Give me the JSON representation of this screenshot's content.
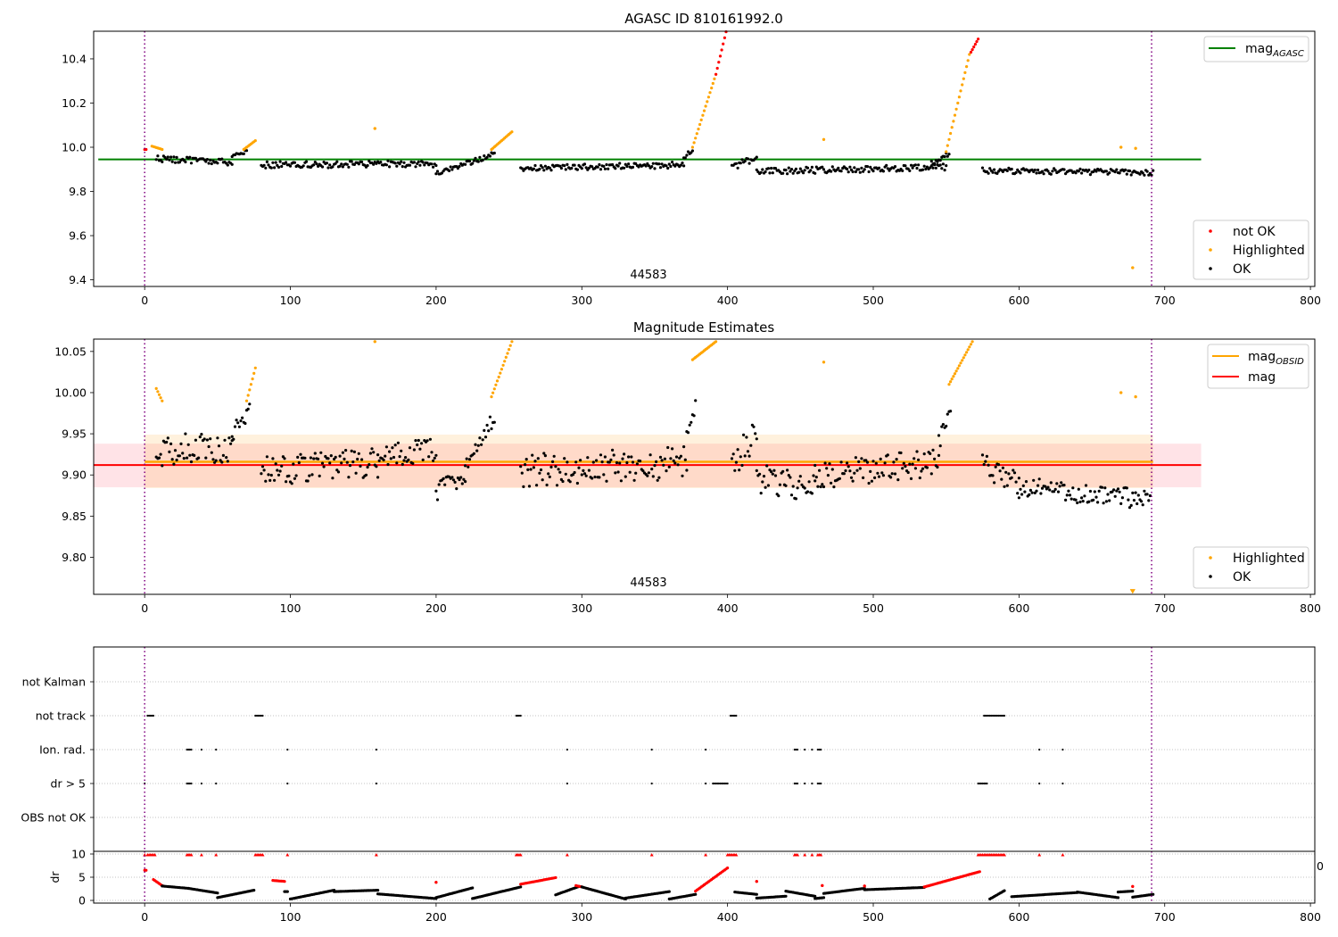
{
  "chart_data": [
    {
      "type": "scatter",
      "title": "AGASC ID 810161992.0",
      "xlim": [
        -35,
        803
      ],
      "ylim": [
        9.37,
        10.525
      ],
      "xticks": [
        "0",
        "100",
        "200",
        "300",
        "400",
        "500",
        "600",
        "700",
        "800"
      ],
      "yticks": [
        "9.4",
        "9.6",
        "9.8",
        "10.0",
        "10.2",
        "10.4"
      ],
      "annotation": "44583",
      "vlines": [
        0,
        691
      ],
      "reference_line": {
        "name": "mag_AGASC",
        "value": 9.945,
        "x_range": [
          0,
          725
        ],
        "color": "#008000"
      },
      "legends": {
        "lines": [
          {
            "label": "mag",
            "sub": "AGASC",
            "color": "#008000"
          }
        ],
        "points": [
          {
            "label": "not OK",
            "color": "#ff0000"
          },
          {
            "label": "Highlighted",
            "color": "#ffa500"
          },
          {
            "label": "OK",
            "color": "#000000"
          }
        ]
      },
      "segments": [
        {
          "x0": 0,
          "x1": 1,
          "y0": 9.99,
          "y1": 9.99,
          "status": "not_ok"
        },
        {
          "x0": 5,
          "x1": 12,
          "y0": 10.005,
          "y1": 9.99,
          "status": "highlighted"
        },
        {
          "x0": 8,
          "x1": 60,
          "y0": 9.95,
          "y1": 9.93,
          "status": "ok",
          "noise": 0.015
        },
        {
          "x0": 60,
          "x1": 70,
          "y0": 9.96,
          "y1": 9.98,
          "status": "ok",
          "noise": 0.008
        },
        {
          "x0": 68,
          "x1": 76,
          "y0": 9.99,
          "y1": 10.03,
          "status": "highlighted"
        },
        {
          "x0": 80,
          "x1": 200,
          "y0": 9.92,
          "y1": 9.925,
          "status": "ok",
          "noise": 0.015
        },
        {
          "x0": 158,
          "x1": 158,
          "y0": 10.085,
          "y1": 10.085,
          "status": "highlighted"
        },
        {
          "x0": 200,
          "x1": 240,
          "y0": 9.88,
          "y1": 9.97,
          "status": "ok",
          "noise": 0.012
        },
        {
          "x0": 238,
          "x1": 252,
          "y0": 9.99,
          "y1": 10.07,
          "status": "highlighted"
        },
        {
          "x0": 258,
          "x1": 370,
          "y0": 9.905,
          "y1": 9.92,
          "status": "ok",
          "noise": 0.014
        },
        {
          "x0": 370,
          "x1": 376,
          "y0": 9.95,
          "y1": 9.99,
          "status": "ok",
          "noise": 0.01
        },
        {
          "x0": 376,
          "x1": 392,
          "y0": 10.0,
          "y1": 10.33,
          "status": "highlighted"
        },
        {
          "x0": 392,
          "x1": 400,
          "y0": 10.33,
          "y1": 10.55,
          "status": "not_ok"
        },
        {
          "x0": 403,
          "x1": 420,
          "y0": 9.91,
          "y1": 9.95,
          "status": "ok",
          "noise": 0.018
        },
        {
          "x0": 420,
          "x1": 550,
          "y0": 9.89,
          "y1": 9.91,
          "status": "ok",
          "noise": 0.015
        },
        {
          "x0": 466,
          "x1": 466,
          "y0": 10.035,
          "y1": 10.035,
          "status": "highlighted"
        },
        {
          "x0": 540,
          "x1": 552,
          "y0": 9.93,
          "y1": 9.97,
          "status": "ok",
          "noise": 0.01
        },
        {
          "x0": 550,
          "x1": 566,
          "y0": 9.98,
          "y1": 10.42,
          "status": "highlighted"
        },
        {
          "x0": 567,
          "x1": 572,
          "y0": 10.43,
          "y1": 10.49,
          "status": "not_ok"
        },
        {
          "x0": 575,
          "x1": 692,
          "y0": 9.895,
          "y1": 9.885,
          "status": "ok",
          "noise": 0.013
        },
        {
          "x0": 670,
          "x1": 670,
          "y0": 10.0,
          "y1": 10.0,
          "status": "highlighted"
        },
        {
          "x0": 678,
          "x1": 678,
          "y0": 9.455,
          "y1": 9.455,
          "status": "highlighted"
        },
        {
          "x0": 680,
          "x1": 680,
          "y0": 9.995,
          "y1": 9.995,
          "status": "highlighted"
        }
      ]
    },
    {
      "type": "scatter",
      "title": "Magnitude Estimates",
      "xlim": [
        -35,
        803
      ],
      "ylim": [
        9.755,
        10.065
      ],
      "clip_value": 10.062,
      "xticks": [
        "0",
        "100",
        "200",
        "300",
        "400",
        "500",
        "600",
        "700",
        "800"
      ],
      "yticks": [
        "9.80",
        "9.85",
        "9.90",
        "9.95",
        "10.00",
        "10.05"
      ],
      "annotation": "44583",
      "vlines": [
        0,
        691
      ],
      "bands": [
        {
          "y0": 9.885,
          "y1": 9.938,
          "x_range": [
            -35,
            725
          ],
          "color": "#ff8090",
          "opacity": 0.22
        },
        {
          "y0": 9.884,
          "y1": 9.949,
          "x_range": [
            0,
            692
          ],
          "color": "#ffb040",
          "opacity": 0.18
        }
      ],
      "reference_lines": [
        {
          "name": "mag_OBSID",
          "value": 9.916,
          "x_range": [
            0,
            692
          ],
          "color": "#ffa500",
          "width": 2.5
        },
        {
          "name": "mag",
          "value": 9.912,
          "x_range": [
            -35,
            725
          ],
          "color": "#ff0000",
          "width": 2
        }
      ],
      "legends": {
        "lines": [
          {
            "label": "mag",
            "sub": "OBSID",
            "color": "#ffa500"
          },
          {
            "label": "mag",
            "sub": "",
            "color": "#ff0000"
          }
        ],
        "points": [
          {
            "label": "Highlighted",
            "color": "#ffa500"
          },
          {
            "label": "OK",
            "color": "#000000"
          }
        ]
      },
      "segments": [
        {
          "x0": 8,
          "x1": 12,
          "y0": 10.005,
          "y1": 9.99,
          "status": "highlighted"
        },
        {
          "x0": 8,
          "x1": 60,
          "y0": 9.93,
          "y1": 9.935,
          "status": "ok",
          "noise": 0.02
        },
        {
          "x0": 60,
          "x1": 72,
          "y0": 9.95,
          "y1": 9.98,
          "status": "ok",
          "noise": 0.01
        },
        {
          "x0": 70,
          "x1": 76,
          "y0": 9.99,
          "y1": 10.03,
          "status": "highlighted"
        },
        {
          "x0": 80,
          "x1": 160,
          "y0": 9.905,
          "y1": 9.915,
          "status": "ok",
          "noise": 0.018
        },
        {
          "x0": 158,
          "x1": 158,
          "y0": 10.062,
          "y1": 10.062,
          "status": "highlighted"
        },
        {
          "x0": 160,
          "x1": 200,
          "y0": 9.925,
          "y1": 9.93,
          "status": "ok",
          "noise": 0.015
        },
        {
          "x0": 200,
          "x1": 220,
          "y0": 9.88,
          "y1": 9.9,
          "status": "ok",
          "noise": 0.012
        },
        {
          "x0": 220,
          "x1": 240,
          "y0": 9.91,
          "y1": 9.97,
          "status": "ok",
          "noise": 0.01
        },
        {
          "x0": 238,
          "x1": 252,
          "y0": 9.995,
          "y1": 10.062,
          "status": "highlighted"
        },
        {
          "x0": 258,
          "x1": 372,
          "y0": 9.905,
          "y1": 9.915,
          "status": "ok",
          "noise": 0.02
        },
        {
          "x0": 372,
          "x1": 378,
          "y0": 9.95,
          "y1": 9.985,
          "status": "ok",
          "noise": 0.008
        },
        {
          "x0": 376,
          "x1": 392,
          "y0": 10.04,
          "y1": 10.062,
          "status": "highlighted"
        },
        {
          "x0": 403,
          "x1": 420,
          "y0": 9.91,
          "y1": 9.95,
          "status": "ok",
          "noise": 0.02
        },
        {
          "x0": 420,
          "x1": 460,
          "y0": 9.895,
          "y1": 9.885,
          "status": "ok",
          "noise": 0.018
        },
        {
          "x0": 460,
          "x1": 545,
          "y0": 9.9,
          "y1": 9.915,
          "status": "ok",
          "noise": 0.018
        },
        {
          "x0": 466,
          "x1": 466,
          "y0": 10.037,
          "y1": 10.037,
          "status": "highlighted"
        },
        {
          "x0": 545,
          "x1": 553,
          "y0": 9.94,
          "y1": 9.98,
          "status": "ok",
          "noise": 0.01
        },
        {
          "x0": 552,
          "x1": 568,
          "y0": 10.01,
          "y1": 10.062,
          "status": "highlighted"
        },
        {
          "x0": 575,
          "x1": 600,
          "y0": 9.91,
          "y1": 9.89,
          "status": "ok",
          "noise": 0.015
        },
        {
          "x0": 600,
          "x1": 690,
          "y0": 9.885,
          "y1": 9.87,
          "status": "ok",
          "noise": 0.013
        },
        {
          "x0": 670,
          "x1": 670,
          "y0": 10.0,
          "y1": 10.0,
          "status": "highlighted"
        },
        {
          "x0": 680,
          "x1": 680,
          "y0": 9.995,
          "y1": 9.995,
          "status": "highlighted"
        },
        {
          "x0": 678,
          "x1": 678,
          "y0": 9.758,
          "y1": 9.758,
          "status": "highlighted_low"
        }
      ]
    },
    {
      "type": "scatter",
      "title": "",
      "xlim": [
        -35,
        803
      ],
      "categories": [
        "not Kalman",
        "not track",
        "Ion. rad.",
        "dr > 5",
        "OBS not OK"
      ],
      "vlines": [
        0,
        691
      ],
      "flags": {
        "not Kalman": [],
        "not track": [
          [
            2,
            6
          ],
          [
            76,
            81
          ],
          [
            255,
            258
          ],
          [
            402,
            406
          ],
          [
            576,
            590
          ]
        ],
        "Ion. rad.": [
          [
            29,
            32
          ],
          [
            39,
            39
          ],
          [
            49,
            49
          ],
          [
            98,
            98
          ],
          [
            159,
            159
          ],
          [
            290,
            290
          ],
          [
            348,
            348
          ],
          [
            385,
            385
          ],
          [
            446,
            448
          ],
          [
            453,
            453
          ],
          [
            458,
            458
          ],
          [
            462,
            464
          ],
          [
            614,
            614
          ],
          [
            630,
            630
          ]
        ],
        "dr > 5": [
          [
            0,
            0
          ],
          [
            29,
            32
          ],
          [
            39,
            39
          ],
          [
            49,
            49
          ],
          [
            98,
            98
          ],
          [
            159,
            159
          ],
          [
            290,
            290
          ],
          [
            348,
            348
          ],
          [
            385,
            385
          ],
          [
            390,
            400
          ],
          [
            446,
            448
          ],
          [
            453,
            453
          ],
          [
            458,
            458
          ],
          [
            462,
            464
          ],
          [
            572,
            578
          ],
          [
            614,
            614
          ],
          [
            630,
            630
          ]
        ],
        "OBS not OK": []
      }
    },
    {
      "type": "scatter",
      "title": "",
      "ylabel": "dr",
      "xlim": [
        -35,
        803
      ],
      "ylim": [
        -0.4,
        10.4
      ],
      "threshold": 5,
      "xticks": [
        "0",
        "100",
        "200",
        "300",
        "400",
        "500",
        "600",
        "700",
        "800"
      ],
      "yticks": [
        "0",
        "5",
        "10"
      ],
      "clipped_marker_value": 10,
      "overflow_label": "0",
      "vlines": [
        0,
        691
      ],
      "segments": [
        {
          "x0": 0,
          "x1": 1,
          "y0": 6.5,
          "y1": 6.5,
          "status": "not_ok"
        },
        {
          "x0": 6,
          "x1": 12,
          "y0": 4.5,
          "y1": 3.2,
          "status": "not_ok"
        },
        {
          "x0": 12,
          "x1": 30,
          "y0": 3.1,
          "y1": 2.6,
          "status": "ok"
        },
        {
          "x0": 30,
          "x1": 50,
          "y0": 2.6,
          "y1": 1.6,
          "status": "ok"
        },
        {
          "x0": 50,
          "x1": 75,
          "y0": 0.6,
          "y1": 2.2,
          "status": "ok"
        },
        {
          "x0": 88,
          "x1": 96,
          "y0": 4.3,
          "y1": 4.1,
          "status": "not_ok"
        },
        {
          "x0": 96,
          "x1": 98,
          "y0": 1.9,
          "y1": 1.9,
          "status": "ok"
        },
        {
          "x0": 100,
          "x1": 130,
          "y0": 0.3,
          "y1": 2.2,
          "status": "ok"
        },
        {
          "x0": 130,
          "x1": 160,
          "y0": 1.9,
          "y1": 2.2,
          "status": "ok"
        },
        {
          "x0": 160,
          "x1": 200,
          "y0": 1.4,
          "y1": 0.4,
          "status": "ok"
        },
        {
          "x0": 200,
          "x1": 200,
          "y0": 3.9,
          "y1": 3.9,
          "status": "not_ok"
        },
        {
          "x0": 200,
          "x1": 225,
          "y0": 0.6,
          "y1": 2.7,
          "status": "ok"
        },
        {
          "x0": 225,
          "x1": 258,
          "y0": 0.4,
          "y1": 2.9,
          "status": "ok"
        },
        {
          "x0": 258,
          "x1": 282,
          "y0": 3.5,
          "y1": 4.9,
          "status": "not_ok"
        },
        {
          "x0": 282,
          "x1": 298,
          "y0": 1.2,
          "y1": 3.0,
          "status": "ok"
        },
        {
          "x0": 296,
          "x1": 300,
          "y0": 3.2,
          "y1": 2.9,
          "status": "not_ok"
        },
        {
          "x0": 300,
          "x1": 330,
          "y0": 2.9,
          "y1": 0.3,
          "status": "ok"
        },
        {
          "x0": 330,
          "x1": 360,
          "y0": 0.5,
          "y1": 1.9,
          "status": "ok"
        },
        {
          "x0": 360,
          "x1": 378,
          "y0": 0.3,
          "y1": 1.3,
          "status": "ok"
        },
        {
          "x0": 378,
          "x1": 400,
          "y0": 2.0,
          "y1": 7.0,
          "status": "not_ok"
        },
        {
          "x0": 405,
          "x1": 420,
          "y0": 1.8,
          "y1": 1.3,
          "status": "ok"
        },
        {
          "x0": 420,
          "x1": 420,
          "y0": 4.1,
          "y1": 4.1,
          "status": "not_ok"
        },
        {
          "x0": 420,
          "x1": 440,
          "y0": 0.5,
          "y1": 0.9,
          "status": "ok"
        },
        {
          "x0": 440,
          "x1": 460,
          "y0": 2.0,
          "y1": 0.9,
          "status": "ok"
        },
        {
          "x0": 460,
          "x1": 466,
          "y0": 0.4,
          "y1": 0.6,
          "status": "ok"
        },
        {
          "x0": 465,
          "x1": 465,
          "y0": 3.2,
          "y1": 3.2,
          "status": "not_ok"
        },
        {
          "x0": 466,
          "x1": 494,
          "y0": 1.5,
          "y1": 2.6,
          "status": "ok"
        },
        {
          "x0": 494,
          "x1": 494,
          "y0": 3.1,
          "y1": 3.1,
          "status": "not_ok"
        },
        {
          "x0": 494,
          "x1": 535,
          "y0": 2.3,
          "y1": 2.8,
          "status": "ok"
        },
        {
          "x0": 535,
          "x1": 573,
          "y0": 2.9,
          "y1": 6.2,
          "status": "not_ok"
        },
        {
          "x0": 580,
          "x1": 590,
          "y0": 0.3,
          "y1": 2.1,
          "status": "ok"
        },
        {
          "x0": 595,
          "x1": 640,
          "y0": 0.8,
          "y1": 1.7,
          "status": "ok"
        },
        {
          "x0": 640,
          "x1": 668,
          "y0": 1.8,
          "y1": 0.6,
          "status": "ok"
        },
        {
          "x0": 668,
          "x1": 678,
          "y0": 1.8,
          "y1": 2.0,
          "status": "ok"
        },
        {
          "x0": 678,
          "x1": 678,
          "y0": 3.0,
          "y1": 3.0,
          "status": "not_ok"
        },
        {
          "x0": 678,
          "x1": 692,
          "y0": 0.7,
          "y1": 1.3,
          "status": "ok"
        }
      ],
      "clipped_markers": [
        [
          0,
          0
        ],
        [
          2,
          7
        ],
        [
          29,
          32
        ],
        [
          39,
          39
        ],
        [
          49,
          49
        ],
        [
          76,
          81
        ],
        [
          98,
          98
        ],
        [
          159,
          159
        ],
        [
          255,
          258
        ],
        [
          290,
          290
        ],
        [
          348,
          348
        ],
        [
          385,
          385
        ],
        [
          400,
          406
        ],
        [
          446,
          448
        ],
        [
          453,
          453
        ],
        [
          458,
          458
        ],
        [
          462,
          464
        ],
        [
          572,
          590
        ],
        [
          614,
          614
        ],
        [
          630,
          630
        ]
      ]
    }
  ]
}
